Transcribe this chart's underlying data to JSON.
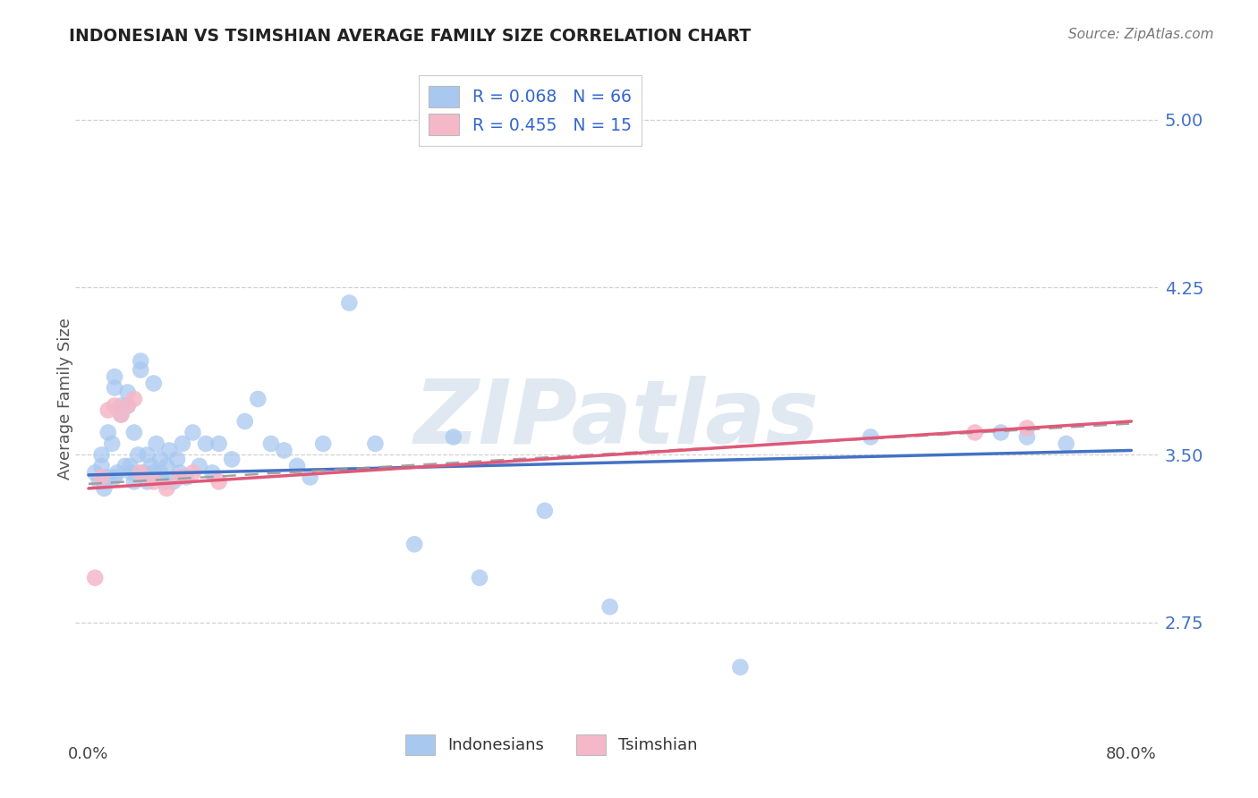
{
  "title": "INDONESIAN VS TSIMSHIAN AVERAGE FAMILY SIZE CORRELATION CHART",
  "source": "Source: ZipAtlas.com",
  "ylabel": "Average Family Size",
  "xlabel": "",
  "xlim": [
    -0.01,
    0.82
  ],
  "ylim": [
    2.25,
    5.25
  ],
  "yticks": [
    2.75,
    3.5,
    4.25,
    5.0
  ],
  "ytick_labels": [
    "2.75",
    "3.50",
    "4.25",
    "5.00"
  ],
  "xticks": [
    0.0,
    0.2,
    0.4,
    0.6,
    0.8
  ],
  "xticklabels": [
    "0.0%",
    "",
    "",
    "",
    "80.0%"
  ],
  "background_color": "#ffffff",
  "grid_color": "#d0d0d0",
  "indonesian_color": "#a8c8f0",
  "tsimshian_color": "#f5b8c8",
  "indonesian_line_color": "#4472c4",
  "tsimshian_line_color": "#e05878",
  "dash_line_color": "#999999",
  "r_indonesian": 0.068,
  "n_indonesian": 66,
  "r_tsimshian": 0.455,
  "n_tsimshian": 15,
  "blue_line_x": [
    0.0,
    0.8
  ],
  "blue_line_y": [
    3.41,
    3.52
  ],
  "pink_line_x": [
    0.0,
    0.8
  ],
  "pink_line_y": [
    3.35,
    3.65
  ],
  "dash_line_x": [
    0.0,
    0.8
  ],
  "dash_line_y": [
    3.35,
    3.65
  ],
  "indonesian_scatter_x": [
    0.005,
    0.008,
    0.01,
    0.01,
    0.012,
    0.015,
    0.015,
    0.018,
    0.02,
    0.02,
    0.02,
    0.022,
    0.025,
    0.025,
    0.028,
    0.03,
    0.03,
    0.032,
    0.033,
    0.035,
    0.035,
    0.038,
    0.04,
    0.04,
    0.042,
    0.045,
    0.045,
    0.048,
    0.05,
    0.05,
    0.052,
    0.055,
    0.055,
    0.058,
    0.06,
    0.062,
    0.065,
    0.068,
    0.07,
    0.072,
    0.075,
    0.08,
    0.085,
    0.09,
    0.095,
    0.1,
    0.11,
    0.12,
    0.13,
    0.14,
    0.15,
    0.16,
    0.17,
    0.18,
    0.2,
    0.22,
    0.25,
    0.28,
    0.3,
    0.35,
    0.4,
    0.5,
    0.6,
    0.7,
    0.72,
    0.75
  ],
  "indonesian_scatter_y": [
    3.42,
    3.38,
    3.5,
    3.45,
    3.35,
    3.6,
    3.4,
    3.55,
    3.8,
    3.85,
    3.4,
    3.42,
    3.68,
    3.72,
    3.45,
    3.72,
    3.78,
    3.45,
    3.42,
    3.6,
    3.38,
    3.5,
    3.88,
    3.92,
    3.42,
    3.38,
    3.5,
    3.45,
    3.82,
    3.42,
    3.55,
    3.48,
    3.42,
    3.38,
    3.45,
    3.52,
    3.38,
    3.48,
    3.42,
    3.55,
    3.4,
    3.6,
    3.45,
    3.55,
    3.42,
    3.55,
    3.48,
    3.65,
    3.75,
    3.55,
    3.52,
    3.45,
    3.4,
    3.55,
    4.18,
    3.55,
    3.1,
    3.58,
    2.95,
    3.25,
    2.82,
    2.55,
    3.58,
    3.6,
    3.58,
    3.55
  ],
  "tsimshian_scatter_x": [
    0.005,
    0.01,
    0.015,
    0.02,
    0.025,
    0.03,
    0.035,
    0.04,
    0.05,
    0.06,
    0.07,
    0.08,
    0.1,
    0.68,
    0.72
  ],
  "tsimshian_scatter_y": [
    2.95,
    3.4,
    3.7,
    3.72,
    3.68,
    3.72,
    3.75,
    3.42,
    3.38,
    3.35,
    3.4,
    3.42,
    3.38,
    3.6,
    3.62
  ],
  "watermark_text": "ZIPatlas",
  "marker_size": 180
}
